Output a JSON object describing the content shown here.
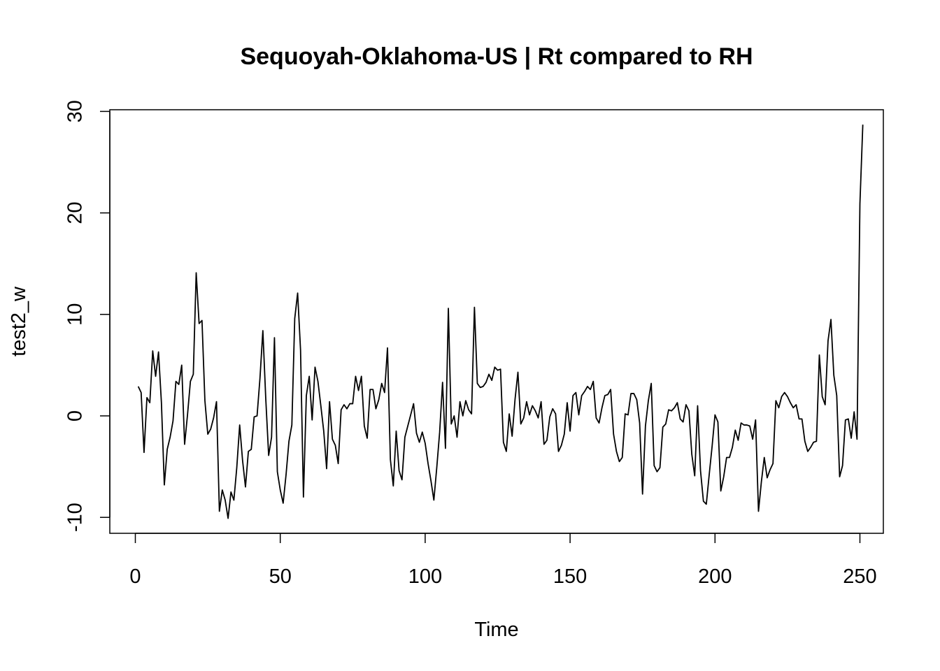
{
  "chart_data": {
    "type": "line",
    "title": "Sequoyah-Oklahoma-US | Rt compared to RH",
    "xlabel": "Time",
    "ylabel": "test2_w",
    "xlim": [
      1,
      248
    ],
    "ylim": [
      -10.1,
      28.7
    ],
    "x_ticks": [
      0,
      50,
      100,
      150,
      200,
      250
    ],
    "y_ticks": [
      -10,
      0,
      10,
      20,
      30
    ],
    "x_tick_labels": [
      "0",
      "50",
      "100",
      "150",
      "200",
      "250"
    ],
    "y_tick_labels": [
      "-10",
      "0",
      "10",
      "20",
      "30"
    ],
    "grid": false,
    "line_color": "#000000",
    "x_start": 1,
    "series": [
      {
        "values": [
          2.9,
          2.3,
          -3.6,
          1.8,
          1.3,
          6.4,
          3.9,
          6.3,
          1.3,
          -6.8,
          -3.3,
          -2.1,
          -0.5,
          3.4,
          3.1,
          5.0,
          -2.8,
          0.1,
          3.4,
          4.1,
          14.1,
          9.1,
          9.4,
          1.5,
          -1.8,
          -1.3,
          -0.2,
          1.4,
          -9.4,
          -7.3,
          -8.3,
          -10.1,
          -7.5,
          -8.3,
          -5.1,
          -0.9,
          -4.4,
          -7.0,
          -3.5,
          -3.3,
          -0.1,
          0.0,
          3.7,
          8.4,
          1.7,
          -3.9,
          -2.1,
          7.7,
          -5.5,
          -7.3,
          -8.6,
          -5.8,
          -2.5,
          -0.9,
          9.6,
          12.1,
          6.5,
          -8.0,
          2.0,
          3.9,
          -0.4,
          4.8,
          3.4,
          1.0,
          -1.5,
          -5.2,
          1.4,
          -2.3,
          -2.9,
          -4.7,
          0.6,
          1.1,
          0.7,
          1.2,
          1.2,
          3.9,
          2.5,
          3.9,
          -1.0,
          -2.2,
          2.6,
          2.6,
          0.7,
          1.6,
          3.2,
          2.3,
          6.7,
          -4.3,
          -6.9,
          -1.5,
          -5.4,
          -6.3,
          -2.1,
          -1.0,
          0.1,
          1.2,
          -1.7,
          -2.6,
          -1.6,
          -2.7,
          -4.7,
          -6.4,
          -8.3,
          -5.1,
          -1.6,
          3.3,
          -3.2,
          10.6,
          -0.8,
          0.0,
          -2.1,
          1.4,
          0.0,
          1.5,
          0.6,
          0.2,
          10.7,
          3.2,
          2.8,
          2.9,
          3.3,
          4.1,
          3.5,
          4.8,
          4.5,
          4.6,
          -2.6,
          -3.5,
          0.2,
          -2.0,
          1.6,
          4.3,
          -0.8,
          -0.2,
          1.4,
          0.1,
          1.0,
          0.5,
          -0.2,
          1.4,
          -2.8,
          -2.4,
          -0.1,
          0.7,
          0.2,
          -3.5,
          -2.9,
          -1.8,
          1.3,
          -1.5,
          2.0,
          2.3,
          0.1,
          2.0,
          2.4,
          2.9,
          2.6,
          3.4,
          -0.2,
          -0.7,
          0.8,
          2.0,
          2.1,
          2.6,
          -1.8,
          -3.5,
          -4.5,
          -4.1,
          0.2,
          0.1,
          2.2,
          2.2,
          1.6,
          -0.7,
          -7.7,
          -1.0,
          1.5,
          3.2,
          -4.9,
          -5.5,
          -5.1,
          -1.1,
          -0.8,
          0.6,
          0.5,
          0.8,
          1.3,
          -0.3,
          -0.6,
          1.1,
          0.5,
          -3.8,
          -5.9,
          1.0,
          -5.4,
          -8.4,
          -8.7,
          -5.8,
          -3.0,
          0.1,
          -0.6,
          -7.4,
          -6.0,
          -4.1,
          -4.1,
          -3.1,
          -1.4,
          -2.4,
          -0.7,
          -0.9,
          -0.9,
          -1.0,
          -2.3,
          -0.4,
          -9.4,
          -6.5,
          -4.1,
          -6.1,
          -5.3,
          -4.7,
          1.5,
          0.8,
          1.9,
          2.3,
          1.9,
          1.3,
          0.8,
          1.1,
          -0.3,
          -0.3,
          -2.5,
          -3.5,
          -3.1,
          -2.6,
          -2.5,
          6.0,
          1.9,
          1.1,
          7.4,
          9.5,
          4.0,
          2.0,
          -6.0,
          -4.9,
          -0.4,
          -0.3,
          -2.2,
          0.4,
          -2.3,
          20.9,
          28.7
        ]
      }
    ]
  }
}
